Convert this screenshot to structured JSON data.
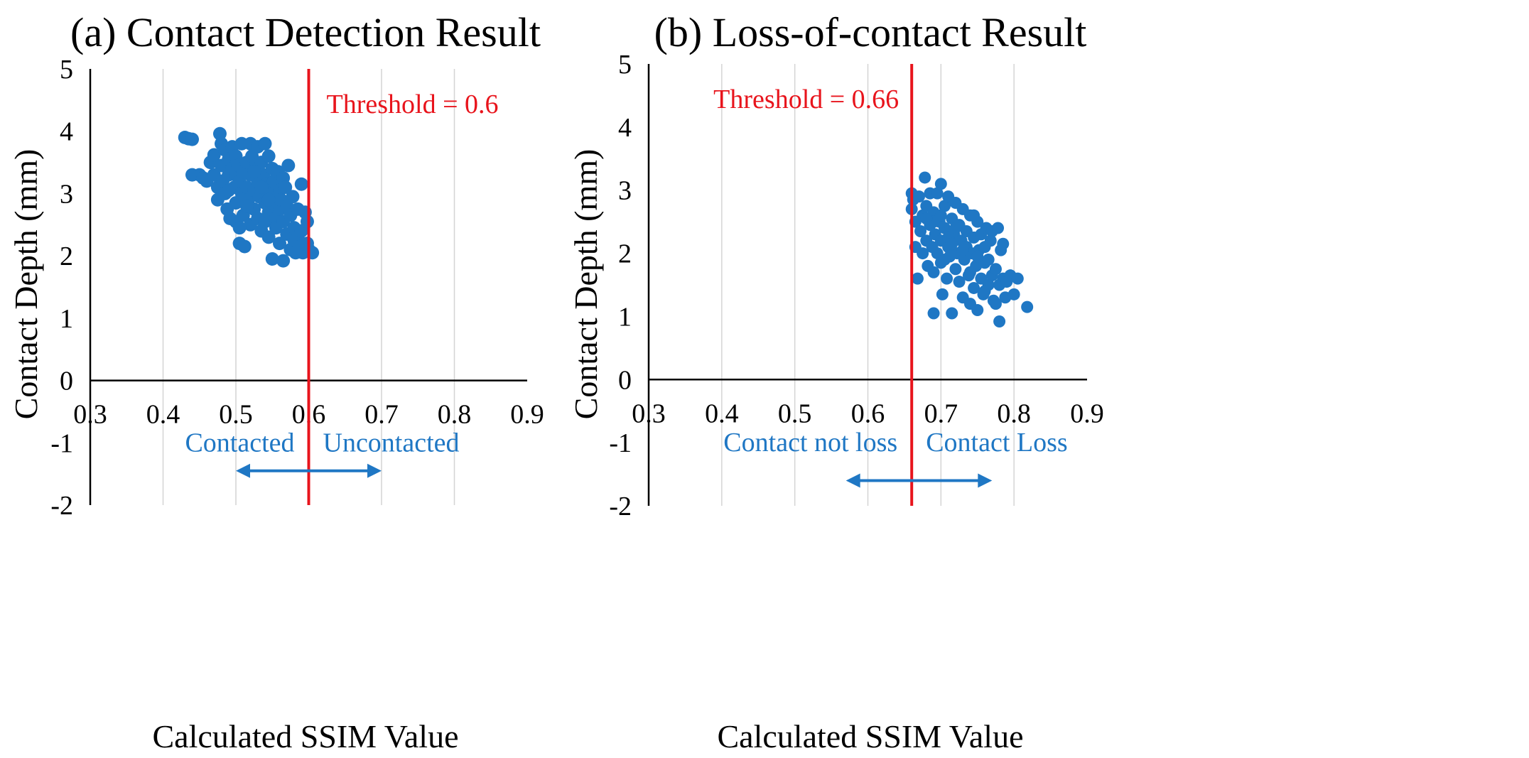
{
  "colors": {
    "point": "#1f77c4",
    "threshold": "#e8141c",
    "annotation": "#1f77c4",
    "grid": "#d4d4d4",
    "axis": "#000000"
  },
  "chart_data": [
    {
      "type": "scatter",
      "title": "(a) Contact Detection Result",
      "xlabel": "Calculated SSIM Value",
      "ylabel": "Contact Depth (mm)",
      "xlim": [
        0.3,
        0.9
      ],
      "ylim": [
        -2,
        5
      ],
      "x_ticks": [
        "0.3",
        "0.4",
        "0.5",
        "0.6",
        "0.7",
        "0.8",
        "0.9"
      ],
      "y_ticks": [
        "5",
        "4",
        "3",
        "2",
        "1",
        "0",
        "-1",
        "-2"
      ],
      "threshold": {
        "value": 0.6,
        "label": "Threshold = 0.6"
      },
      "region_left_label": "Contacted",
      "region_right_label": "Uncontacted",
      "arrow_range": [
        0.5,
        0.7
      ],
      "arrow_y": -1.45,
      "points": [
        [
          0.43,
          3.9
        ],
        [
          0.435,
          3.88
        ],
        [
          0.44,
          3.87
        ],
        [
          0.44,
          3.3
        ],
        [
          0.45,
          3.3
        ],
        [
          0.455,
          3.25
        ],
        [
          0.46,
          3.2
        ],
        [
          0.465,
          3.5
        ],
        [
          0.47,
          3.62
        ],
        [
          0.47,
          3.3
        ],
        [
          0.475,
          3.1
        ],
        [
          0.475,
          2.9
        ],
        [
          0.478,
          3.96
        ],
        [
          0.48,
          3.8
        ],
        [
          0.48,
          3.45
        ],
        [
          0.482,
          3.2
        ],
        [
          0.485,
          3.7
        ],
        [
          0.485,
          3.0
        ],
        [
          0.488,
          2.75
        ],
        [
          0.49,
          3.55
        ],
        [
          0.49,
          3.3
        ],
        [
          0.492,
          2.6
        ],
        [
          0.495,
          3.75
        ],
        [
          0.495,
          3.4
        ],
        [
          0.498,
          3.1
        ],
        [
          0.5,
          3.6
        ],
        [
          0.5,
          3.3
        ],
        [
          0.5,
          2.85
        ],
        [
          0.5,
          2.55
        ],
        [
          0.503,
          3.45
        ],
        [
          0.505,
          3.2
        ],
        [
          0.505,
          2.2
        ],
        [
          0.508,
          3.8
        ],
        [
          0.508,
          3.0
        ],
        [
          0.51,
          3.35
        ],
        [
          0.51,
          2.65
        ],
        [
          0.512,
          2.15
        ],
        [
          0.515,
          3.5
        ],
        [
          0.515,
          3.1
        ],
        [
          0.517,
          2.9
        ],
        [
          0.52,
          3.8
        ],
        [
          0.52,
          3.3
        ],
        [
          0.52,
          2.5
        ],
        [
          0.522,
          3.6
        ],
        [
          0.525,
          3.05
        ],
        [
          0.525,
          2.75
        ],
        [
          0.528,
          3.45
        ],
        [
          0.53,
          3.75
        ],
        [
          0.53,
          3.2
        ],
        [
          0.53,
          2.6
        ],
        [
          0.532,
          2.95
        ],
        [
          0.535,
          3.5
        ],
        [
          0.535,
          3.0
        ],
        [
          0.535,
          2.4
        ],
        [
          0.538,
          3.3
        ],
        [
          0.54,
          3.8
        ],
        [
          0.54,
          2.85
        ],
        [
          0.54,
          2.55
        ],
        [
          0.542,
          3.15
        ],
        [
          0.545,
          3.6
        ],
        [
          0.545,
          2.7
        ],
        [
          0.545,
          2.3
        ],
        [
          0.548,
          3.0
        ],
        [
          0.55,
          3.4
        ],
        [
          0.55,
          2.85
        ],
        [
          0.55,
          1.95
        ],
        [
          0.552,
          3.2
        ],
        [
          0.555,
          2.6
        ],
        [
          0.555,
          2.45
        ],
        [
          0.558,
          3.35
        ],
        [
          0.56,
          3.05
        ],
        [
          0.56,
          2.75
        ],
        [
          0.56,
          2.2
        ],
        [
          0.562,
          2.9
        ],
        [
          0.565,
          3.25
        ],
        [
          0.565,
          2.55
        ],
        [
          0.565,
          1.92
        ],
        [
          0.568,
          3.1
        ],
        [
          0.57,
          2.8
        ],
        [
          0.57,
          2.35
        ],
        [
          0.572,
          3.45
        ],
        [
          0.575,
          2.65
        ],
        [
          0.575,
          2.1
        ],
        [
          0.578,
          2.95
        ],
        [
          0.58,
          2.45
        ],
        [
          0.58,
          2.25
        ],
        [
          0.582,
          2.05
        ],
        [
          0.585,
          2.75
        ],
        [
          0.585,
          2.3
        ],
        [
          0.588,
          2.15
        ],
        [
          0.59,
          3.15
        ],
        [
          0.59,
          2.4
        ],
        [
          0.592,
          2.05
        ],
        [
          0.595,
          2.7
        ],
        [
          0.598,
          2.2
        ],
        [
          0.6,
          2.1
        ],
        [
          0.605,
          2.05
        ],
        [
          0.598,
          2.55
        ],
        [
          0.49,
          3.05
        ],
        [
          0.505,
          2.45
        ],
        [
          0.525,
          3.35
        ],
        [
          0.545,
          2.9
        ],
        [
          0.515,
          2.8
        ],
        [
          0.535,
          3.1
        ]
      ]
    },
    {
      "type": "scatter",
      "title": "(b) Loss-of-contact Result",
      "xlabel": "Calculated SSIM Value",
      "ylabel": "Contact Depth (mm)",
      "xlim": [
        0.3,
        0.9
      ],
      "ylim": [
        -2,
        5
      ],
      "x_ticks": [
        "0.3",
        "0.4",
        "0.5",
        "0.6",
        "0.7",
        "0.8",
        "0.9"
      ],
      "y_ticks": [
        "5",
        "4",
        "3",
        "2",
        "1",
        "0",
        "-1",
        "-2"
      ],
      "threshold": {
        "value": 0.66,
        "label": "Threshold = 0.66"
      },
      "region_left_label": "Contact not loss",
      "region_right_label": "Contact Loss",
      "arrow_range": [
        0.57,
        0.77
      ],
      "arrow_y": -1.6,
      "points": [
        [
          0.66,
          2.95
        ],
        [
          0.66,
          2.7
        ],
        [
          0.662,
          2.85
        ],
        [
          0.665,
          2.1
        ],
        [
          0.665,
          2.5
        ],
        [
          0.668,
          1.6
        ],
        [
          0.67,
          2.9
        ],
        [
          0.672,
          2.35
        ],
        [
          0.675,
          2.6
        ],
        [
          0.675,
          2.0
        ],
        [
          0.678,
          3.2
        ],
        [
          0.68,
          2.75
        ],
        [
          0.68,
          2.2
        ],
        [
          0.682,
          1.8
        ],
        [
          0.685,
          2.95
        ],
        [
          0.685,
          2.45
        ],
        [
          0.688,
          2.1
        ],
        [
          0.69,
          2.65
        ],
        [
          0.69,
          1.7
        ],
        [
          0.69,
          1.05
        ],
        [
          0.692,
          2.3
        ],
        [
          0.695,
          2.95
        ],
        [
          0.695,
          2.0
        ],
        [
          0.698,
          2.5
        ],
        [
          0.7,
          3.1
        ],
        [
          0.7,
          2.2
        ],
        [
          0.7,
          1.85
        ],
        [
          0.702,
          1.35
        ],
        [
          0.705,
          2.75
        ],
        [
          0.705,
          2.4
        ],
        [
          0.708,
          1.6
        ],
        [
          0.71,
          2.9
        ],
        [
          0.71,
          2.1
        ],
        [
          0.712,
          1.95
        ],
        [
          0.715,
          2.55
        ],
        [
          0.715,
          1.05
        ],
        [
          0.718,
          2.3
        ],
        [
          0.72,
          2.8
        ],
        [
          0.72,
          1.75
        ],
        [
          0.722,
          2.0
        ],
        [
          0.725,
          2.45
        ],
        [
          0.725,
          1.55
        ],
        [
          0.728,
          2.2
        ],
        [
          0.73,
          2.7
        ],
        [
          0.73,
          1.3
        ],
        [
          0.732,
          1.9
        ],
        [
          0.735,
          2.35
        ],
        [
          0.735,
          2.1
        ],
        [
          0.738,
          1.65
        ],
        [
          0.74,
          2.6
        ],
        [
          0.74,
          1.2
        ],
        [
          0.742,
          2.0
        ],
        [
          0.745,
          2.25
        ],
        [
          0.745,
          1.45
        ],
        [
          0.748,
          1.8
        ],
        [
          0.75,
          2.5
        ],
        [
          0.75,
          1.1
        ],
        [
          0.752,
          2.05
        ],
        [
          0.755,
          1.6
        ],
        [
          0.755,
          2.3
        ],
        [
          0.758,
          1.35
        ],
        [
          0.76,
          2.1
        ],
        [
          0.76,
          1.85
        ],
        [
          0.762,
          2.4
        ],
        [
          0.765,
          1.5
        ],
        [
          0.765,
          1.9
        ],
        [
          0.768,
          2.2
        ],
        [
          0.77,
          1.65
        ],
        [
          0.77,
          2.35
        ],
        [
          0.772,
          1.25
        ],
        [
          0.775,
          1.75
        ],
        [
          0.778,
          2.4
        ],
        [
          0.78,
          1.5
        ],
        [
          0.78,
          0.92
        ],
        [
          0.782,
          2.05
        ],
        [
          0.785,
          1.6
        ],
        [
          0.785,
          2.15
        ],
        [
          0.788,
          1.3
        ],
        [
          0.79,
          1.55
        ],
        [
          0.795,
          1.65
        ],
        [
          0.8,
          1.35
        ],
        [
          0.805,
          1.6
        ],
        [
          0.818,
          1.15
        ],
        [
          0.775,
          1.2
        ],
        [
          0.69,
          2.5
        ],
        [
          0.71,
          2.25
        ],
        [
          0.73,
          2.05
        ],
        [
          0.75,
          1.95
        ],
        [
          0.72,
          2.4
        ],
        [
          0.74,
          1.7
        ],
        [
          0.705,
          1.9
        ],
        [
          0.76,
          1.4
        ],
        [
          0.68,
          2.55
        ],
        [
          0.7,
          2.6
        ],
        [
          0.715,
          2.15
        ],
        [
          0.745,
          2.6
        ]
      ]
    }
  ]
}
